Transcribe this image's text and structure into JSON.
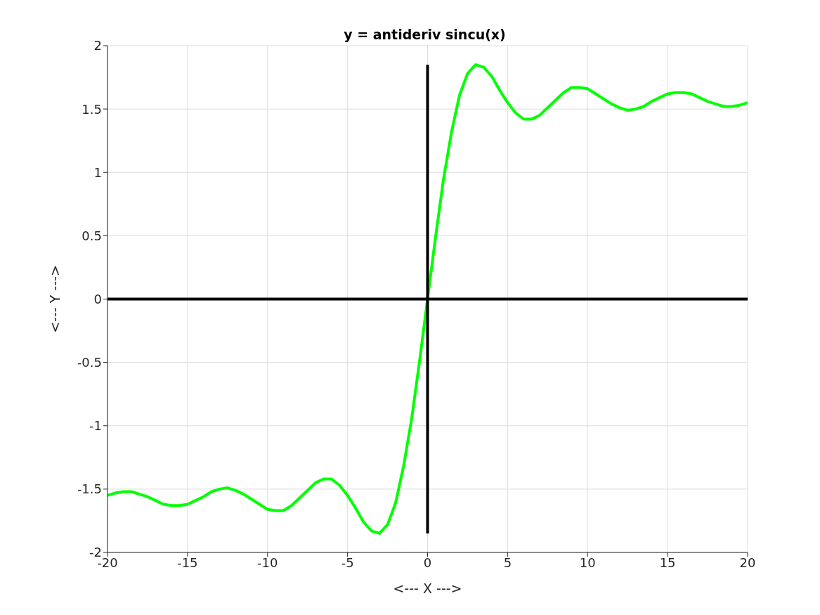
{
  "chart_data": {
    "type": "line",
    "title": "y = antideriv sincu(x)",
    "xlabel": "<--- X --->",
    "ylabel": "<--- Y --->",
    "x": [
      -20,
      -19.5,
      -19,
      -18.5,
      -18,
      -17.5,
      -17,
      -16.5,
      -16,
      -15.5,
      -15,
      -14.5,
      -14,
      -13.5,
      -13,
      -12.5,
      -12,
      -11.5,
      -11,
      -10.5,
      -10,
      -9.5,
      -9,
      -8.5,
      -8,
      -7.5,
      -7,
      -6.5,
      -6,
      -5.5,
      -5,
      -4.5,
      -4,
      -3.5,
      -3,
      -2.5,
      -2,
      -1.5,
      -1,
      -0.5,
      0,
      0.5,
      1,
      1.5,
      2,
      2.5,
      3,
      3.5,
      4,
      4.5,
      5,
      5.5,
      6,
      6.5,
      7,
      7.5,
      8,
      8.5,
      9,
      9.5,
      10,
      10.5,
      11,
      11.5,
      12,
      12.5,
      13,
      13.5,
      14,
      14.5,
      15,
      15.5,
      16,
      16.5,
      17,
      17.5,
      18,
      18.5,
      19,
      19.5,
      20
    ],
    "series": [
      {
        "color": "#00ff00",
        "values": [
          -1.55,
          -1.53,
          -1.52,
          -1.52,
          -1.54,
          -1.56,
          -1.59,
          -1.62,
          -1.63,
          -1.63,
          -1.62,
          -1.59,
          -1.56,
          -1.52,
          -1.5,
          -1.49,
          -1.51,
          -1.54,
          -1.58,
          -1.62,
          -1.66,
          -1.67,
          -1.67,
          -1.63,
          -1.57,
          -1.51,
          -1.45,
          -1.42,
          -1.42,
          -1.47,
          -1.55,
          -1.65,
          -1.76,
          -1.83,
          -1.85,
          -1.78,
          -1.61,
          -1.32,
          -0.95,
          -0.49,
          0,
          0.49,
          0.95,
          1.32,
          1.61,
          1.78,
          1.85,
          1.83,
          1.76,
          1.65,
          1.55,
          1.47,
          1.42,
          1.42,
          1.45,
          1.51,
          1.57,
          1.63,
          1.67,
          1.67,
          1.66,
          1.62,
          1.58,
          1.54,
          1.51,
          1.49,
          1.5,
          1.52,
          1.56,
          1.59,
          1.62,
          1.63,
          1.63,
          1.62,
          1.59,
          1.56,
          1.54,
          1.52,
          1.52,
          1.53,
          1.55
        ]
      },
      {
        "color": "#000000",
        "x": [
          -20,
          20
        ],
        "values": [
          0,
          0
        ]
      },
      {
        "color": "#000000",
        "x": [
          0,
          0
        ],
        "values": [
          -1.85,
          1.85
        ]
      }
    ],
    "xlim": [
      -20,
      20
    ],
    "xticks": [
      -20,
      -15,
      -10,
      -5,
      0,
      5,
      10,
      15,
      20
    ],
    "ylim": [
      -2,
      2
    ],
    "yticks": [
      -2,
      -1.5,
      -1,
      -0.5,
      0,
      0.5,
      1,
      1.5,
      2
    ],
    "grid": true
  }
}
